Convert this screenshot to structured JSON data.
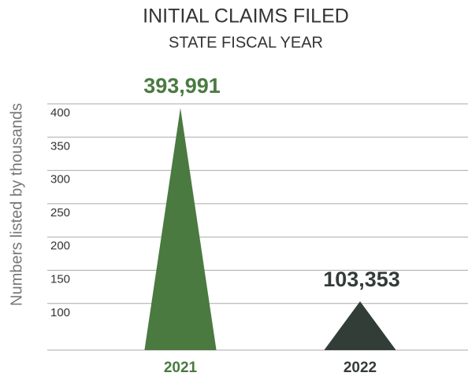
{
  "chart_data": {
    "type": "triangle_bar",
    "title": "INITIAL CLAIMS FILED",
    "subtitle": "STATE FISCAL YEAR",
    "y_label": "Numbers listed by thousands",
    "categories": [
      "2021",
      "2022"
    ],
    "values": [
      393.991,
      103.353
    ],
    "value_labels": [
      "393,991",
      "103,353"
    ],
    "colors": [
      "#4a7a40",
      "#333d38"
    ],
    "ylim": [
      30,
      400
    ],
    "yticks": [
      100,
      150,
      200,
      250,
      300,
      350,
      400
    ],
    "grid": true
  }
}
